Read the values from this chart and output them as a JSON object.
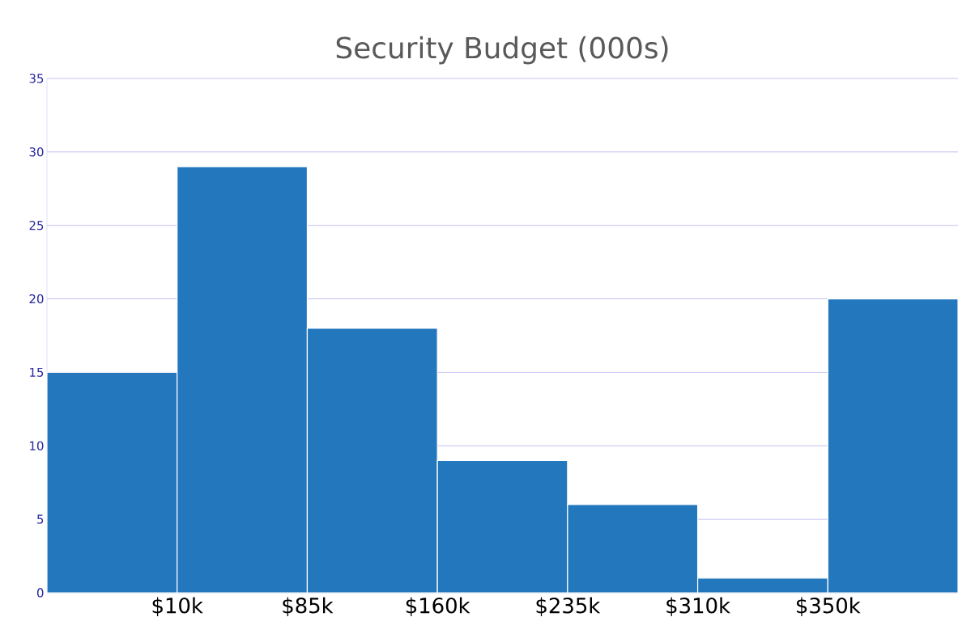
{
  "chart_data": {
    "type": "bar",
    "title": "Security Budget (000s)",
    "categories": [
      null,
      null,
      null,
      null,
      null,
      null,
      null
    ],
    "values": [
      15,
      29,
      18,
      9,
      6,
      1,
      20
    ],
    "color": "#2377bd",
    "ylim": [
      0,
      35
    ],
    "yticks": [
      0,
      5,
      10,
      15,
      20,
      25,
      30,
      35
    ],
    "annotations": [
      "$10k",
      "$85k",
      "$160k",
      "$235k",
      "$310k",
      "$350k"
    ],
    "grid": "y"
  }
}
